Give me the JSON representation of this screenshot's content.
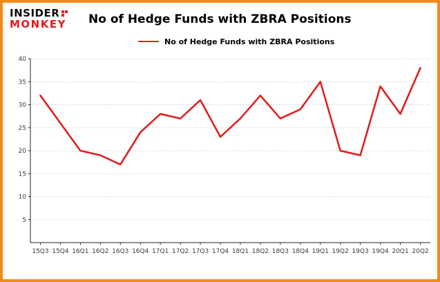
{
  "brand": {
    "line1": "INSIDER",
    "line2": "MONKEY"
  },
  "header": {
    "title": "No of Hedge Funds with ZBRA Positions"
  },
  "legend": {
    "label": "No of Hedge Funds with ZBRA Positions"
  },
  "colors": {
    "border": "#f28b1d",
    "line": "#e01f1f",
    "brand_red": "#e8191f",
    "grid": "#b3b3b3"
  },
  "chart_data": {
    "type": "line",
    "title": "No of Hedge Funds with ZBRA Positions",
    "series_name": "No of Hedge Funds with ZBRA Positions",
    "categories": [
      "15Q3",
      "15Q4",
      "16Q1",
      "16Q2",
      "16Q3",
      "16Q4",
      "17Q1",
      "17Q2",
      "17Q3",
      "17Q4",
      "18Q1",
      "18Q2",
      "18Q3",
      "18Q4",
      "19Q1",
      "19Q2",
      "19Q3",
      "19Q4",
      "20Q1",
      "20Q2"
    ],
    "values": [
      32,
      26,
      20,
      19,
      17,
      24,
      28,
      27,
      31,
      23,
      27,
      32,
      27,
      29,
      35,
      20,
      19,
      34,
      28,
      38
    ],
    "xlabel": "",
    "ylabel": "",
    "ylim": [
      0,
      40
    ],
    "ytick_step": 5,
    "grid": true,
    "legend_position": "top"
  }
}
